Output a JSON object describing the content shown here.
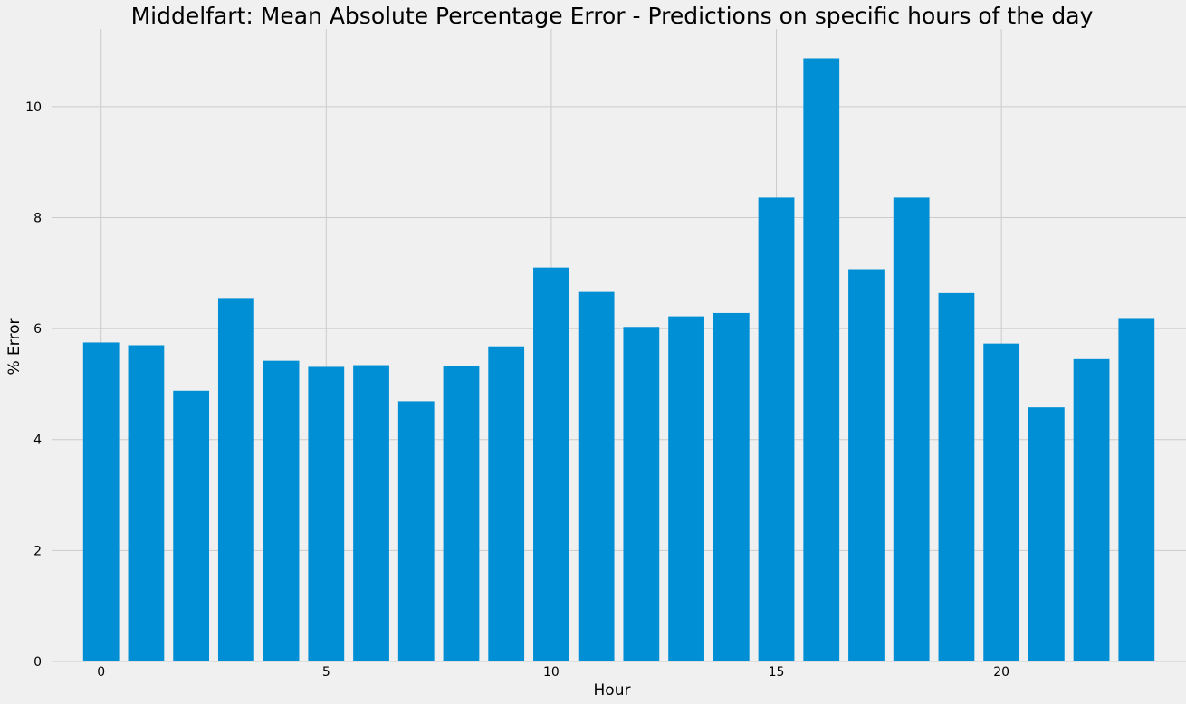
{
  "chart_data": {
    "type": "bar",
    "title": "Middelfart: Mean Absolute Percentage Error - Predictions on specific hours of the day",
    "xlabel": "Hour",
    "ylabel": "% Error",
    "x": [
      0,
      1,
      2,
      3,
      4,
      5,
      6,
      7,
      8,
      9,
      10,
      11,
      12,
      13,
      14,
      15,
      16,
      17,
      18,
      19,
      20,
      21,
      22,
      23
    ],
    "values": [
      5.75,
      5.7,
      4.88,
      6.55,
      5.42,
      5.31,
      5.34,
      4.69,
      5.33,
      5.68,
      7.1,
      6.66,
      6.03,
      6.22,
      6.28,
      8.36,
      10.87,
      7.07,
      8.36,
      6.64,
      5.73,
      4.58,
      5.45,
      6.19
    ],
    "xticks": [
      0,
      5,
      10,
      15,
      20
    ],
    "yticks": [
      0,
      2,
      4,
      6,
      8,
      10
    ],
    "xlim": [
      -1.1,
      24.1
    ],
    "ylim": [
      0,
      11.4
    ],
    "grid": true,
    "bar_color": "#008fd5",
    "background_color": "#f0f0f0",
    "grid_color": "#cbcbcb"
  }
}
